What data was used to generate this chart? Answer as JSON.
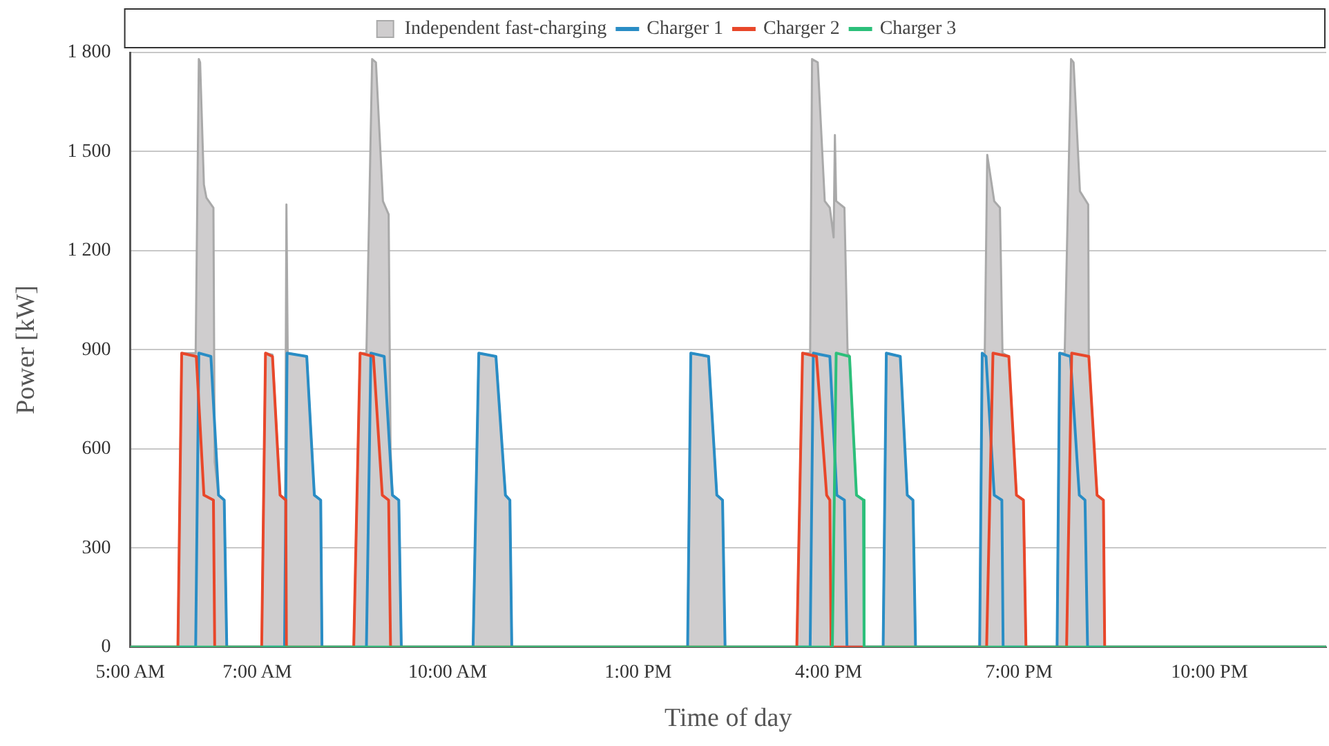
{
  "chart_data": {
    "type": "line",
    "xlabel": "Time of day",
    "ylabel": "Power [kW]",
    "xlim": [
      5,
      23.84
    ],
    "xticks": [
      {
        "value": 5,
        "label": "5:00 AM"
      },
      {
        "value": 7,
        "label": "7:00 AM"
      },
      {
        "value": 10,
        "label": "10:00 AM"
      },
      {
        "value": 13,
        "label": "1:00 PM"
      },
      {
        "value": 16,
        "label": "4:00 PM"
      },
      {
        "value": 19,
        "label": "7:00 PM"
      },
      {
        "value": 22,
        "label": "10:00 PM"
      }
    ],
    "ylim": [
      0,
      1800
    ],
    "yticks": [
      0,
      300,
      600,
      900,
      {
        "value": 1200,
        "label": "1 200"
      },
      {
        "value": 1500,
        "label": "1 500"
      },
      {
        "value": 1800,
        "label": "1 800"
      }
    ],
    "grid": "y",
    "legend": "top",
    "marker": "none",
    "line_style": "solid",
    "series": [
      {
        "name": "Independent fast-charging",
        "type": "area",
        "color": "#cfcdce",
        "x": [
          5,
          5.75,
          5.81,
          6.03,
          6.08,
          6.1,
          6.16,
          6.2,
          6.31,
          6.33,
          6.39,
          6.48,
          6.52,
          7.07,
          7.13,
          7.24,
          7.36,
          7.44,
          7.46,
          7.48,
          7.78,
          7.9,
          8.0,
          8.02,
          8.52,
          8.62,
          8.72,
          8.81,
          8.87,
          8.98,
          9.07,
          9.1,
          9.13,
          9.23,
          9.27,
          10.4,
          10.49,
          10.76,
          10.91,
          10.98,
          11.01,
          13.78,
          13.83,
          14.11,
          14.24,
          14.33,
          14.37,
          15.5,
          15.59,
          15.71,
          15.74,
          15.83,
          15.94,
          16.02,
          16.08,
          16.1,
          16.12,
          16.25,
          16.3,
          16.33,
          16.44,
          16.55,
          16.56,
          16.86,
          16.91,
          17.13,
          17.24,
          17.33,
          17.37,
          18.38,
          18.42,
          18.46,
          18.5,
          18.61,
          18.7,
          18.74,
          18.84,
          18.96,
          19.07,
          19.11,
          19.6,
          19.64,
          19.72,
          19.82,
          19.86,
          19.96,
          20.09,
          20.1,
          20.23,
          20.33,
          20.35,
          23.84
        ],
        "values": [
          0,
          0,
          890,
          890,
          1780,
          1770,
          1400,
          1360,
          1330,
          560,
          460,
          445,
          0,
          0,
          890,
          885,
          460,
          445,
          1340,
          890,
          880,
          460,
          445,
          0,
          0,
          890,
          890,
          1780,
          1770,
          1350,
          1310,
          600,
          460,
          445,
          0,
          0,
          890,
          880,
          460,
          445,
          0,
          0,
          890,
          880,
          460,
          445,
          0,
          0,
          890,
          890,
          1780,
          1770,
          1350,
          1330,
          1240,
          1550,
          1350,
          1330,
          890,
          880,
          460,
          445,
          0,
          0,
          890,
          880,
          460,
          445,
          0,
          0,
          890,
          880,
          1490,
          1350,
          1330,
          890,
          880,
          460,
          445,
          0,
          0,
          890,
          890,
          1780,
          1770,
          1380,
          1340,
          880,
          460,
          445,
          0,
          0
        ]
      },
      {
        "name": "Charger 1",
        "type": "line",
        "color": "#2a8dc5",
        "x": [
          5,
          6.03,
          6.08,
          6.27,
          6.39,
          6.48,
          6.52,
          7.43,
          7.47,
          7.78,
          7.9,
          8.0,
          8.02,
          8.72,
          8.79,
          9.0,
          9.13,
          9.23,
          9.27,
          10.4,
          10.49,
          10.76,
          10.91,
          10.98,
          11.01,
          13.78,
          13.83,
          14.11,
          14.24,
          14.33,
          14.37,
          15.71,
          15.76,
          16.02,
          16.13,
          16.25,
          16.29,
          16.86,
          16.91,
          17.13,
          17.24,
          17.33,
          17.37,
          18.38,
          18.42,
          18.48,
          18.61,
          18.73,
          18.75,
          19.6,
          19.64,
          19.81,
          19.95,
          20.04,
          20.08,
          23.84
        ],
        "values": [
          0,
          0,
          890,
          880,
          460,
          445,
          0,
          0,
          890,
          880,
          460,
          445,
          0,
          0,
          890,
          880,
          460,
          445,
          0,
          0,
          890,
          880,
          460,
          445,
          0,
          0,
          890,
          880,
          460,
          445,
          0,
          0,
          890,
          880,
          460,
          445,
          0,
          0,
          890,
          880,
          460,
          445,
          0,
          0,
          890,
          880,
          460,
          445,
          0,
          0,
          890,
          880,
          460,
          445,
          0,
          0
        ]
      },
      {
        "name": "Charger 2",
        "type": "line",
        "color": "#e8472a",
        "x": [
          5,
          5.75,
          5.81,
          6.04,
          6.16,
          6.31,
          6.33,
          7.07,
          7.13,
          7.24,
          7.36,
          7.45,
          7.46,
          8.52,
          8.62,
          8.83,
          8.97,
          9.07,
          9.1,
          15.5,
          15.59,
          15.81,
          15.97,
          16.02,
          16.04,
          18.49,
          18.59,
          18.84,
          18.96,
          19.07,
          19.11,
          19.75,
          19.83,
          20.1,
          20.23,
          20.33,
          20.35,
          23.84
        ],
        "values": [
          0,
          0,
          890,
          880,
          460,
          445,
          0,
          0,
          890,
          880,
          460,
          445,
          0,
          0,
          890,
          880,
          460,
          445,
          0,
          0,
          890,
          880,
          460,
          445,
          0,
          0,
          890,
          880,
          460,
          445,
          0,
          0,
          890,
          880,
          460,
          445,
          0,
          0
        ]
      },
      {
        "name": "Charger 3",
        "type": "line",
        "color": "#2cbf7a",
        "x": [
          5,
          16.06,
          16.12,
          16.33,
          16.44,
          16.55,
          16.56,
          23.84
        ],
        "values": [
          0,
          0,
          890,
          880,
          460,
          445,
          0,
          0
        ]
      }
    ]
  }
}
